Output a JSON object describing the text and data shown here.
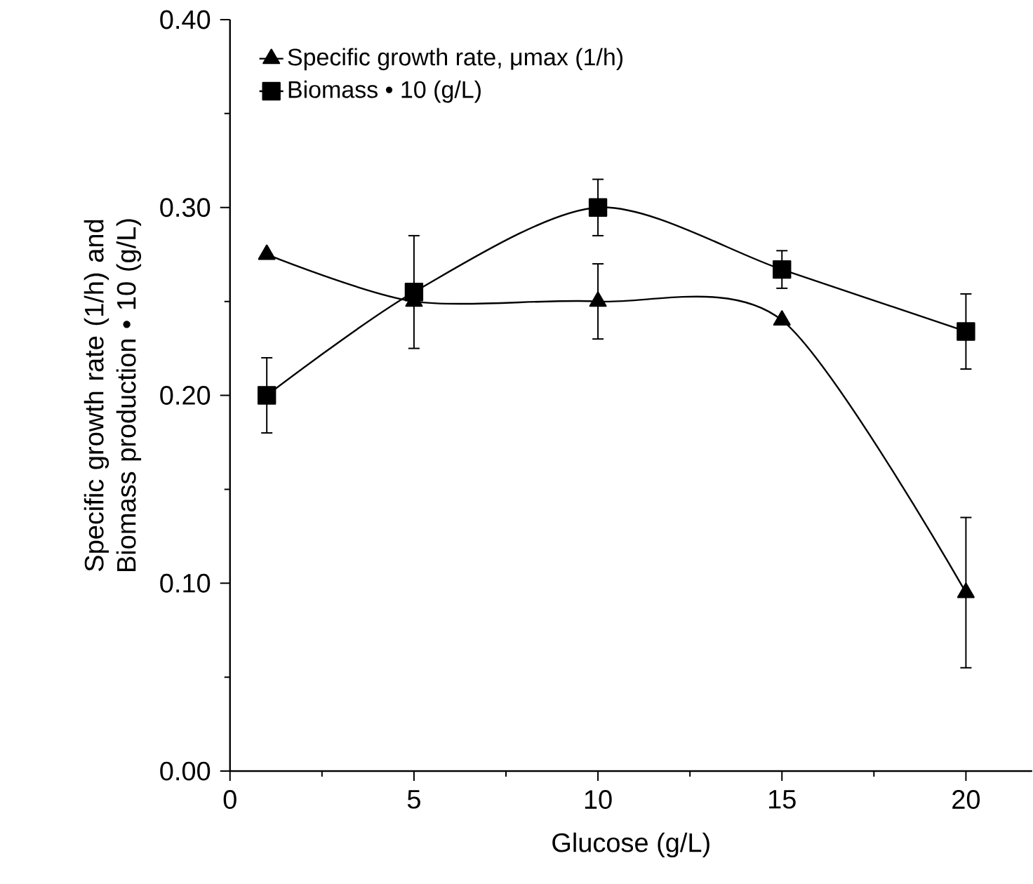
{
  "chart_data": {
    "type": "line",
    "xlabel": "Glucose (g/L)",
    "ylabel": "Specific growth rate (1/h) and Biomass production • 10 (g/L)",
    "x": [
      1,
      5,
      10,
      15,
      20
    ],
    "series": [
      {
        "name": "Specific growth rate, μmax (1/h)",
        "color": "#000000",
        "marker": "triangle",
        "values": [
          0.275,
          0.25,
          0.25,
          0.24,
          0.095
        ],
        "errors": [
          null,
          null,
          0.02,
          null,
          0.04
        ]
      },
      {
        "name": "Biomass • 10 (g/L)",
        "color": "#000000",
        "marker": "square",
        "values": [
          0.2,
          0.255,
          0.3,
          0.267,
          0.234
        ],
        "errors": [
          0.02,
          0.03,
          0.015,
          0.01,
          0.02
        ]
      }
    ],
    "xlim": [
      0,
      21.8
    ],
    "xticks": [
      0,
      5,
      10,
      15,
      20
    ],
    "ylim": [
      0,
      0.4
    ],
    "yticks": [
      {
        "value": 0,
        "label": "0.00"
      },
      {
        "value": 0.1,
        "label": "0.10"
      },
      {
        "value": 0.2,
        "label": "0.20"
      },
      {
        "value": 0.3,
        "label": "0.30"
      },
      {
        "value": 0.4,
        "label": "0.40"
      }
    ],
    "legend": "top left",
    "grid": false,
    "line_style": "solid"
  }
}
